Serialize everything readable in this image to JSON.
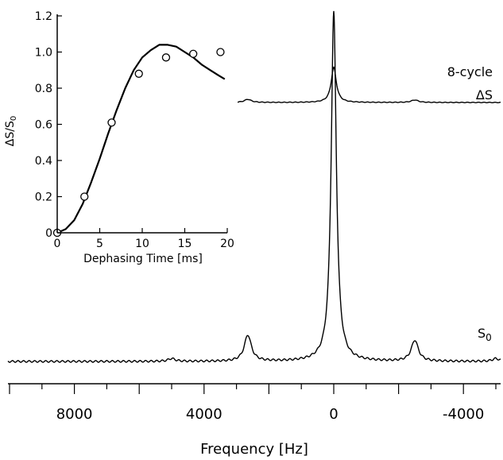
{
  "chart_data": [
    {
      "type": "line",
      "xlabel": "Frequency [Hz]",
      "xticks": [
        8000,
        4000,
        0,
        -4000
      ],
      "xtick_labels": [
        "8000",
        "4000",
        "0",
        "-4000"
      ],
      "xlim": [
        10000,
        -5200
      ],
      "x_reversed": true,
      "traces": [
        {
          "label_line1": "8-cycle",
          "label_line2": "ΔS",
          "relative_height": 0.17,
          "peaks": [
            {
              "x": 0,
              "amp": 0.17
            },
            {
              "x": 2650,
              "amp": 0.015
            },
            {
              "x": -2500,
              "amp": 0.012
            }
          ]
        },
        {
          "label": "S",
          "label_sub": "0",
          "relative_height": 1.0,
          "peaks": [
            {
              "x": 0,
              "amp": 1.0
            },
            {
              "x": 2650,
              "amp": 0.075
            },
            {
              "x": -2500,
              "amp": 0.06
            },
            {
              "x": 5000,
              "amp": 0.008
            },
            {
              "x": -5000,
              "amp": 0.008
            }
          ]
        }
      ]
    },
    {
      "type": "scatter",
      "xlabel": "Dephasing Time [ms]",
      "ylabel_main": "ΔS/S",
      "ylabel_sub": "0",
      "xlim": [
        0,
        20
      ],
      "ylim": [
        0,
        1.2
      ],
      "xticks": [
        0,
        5,
        10,
        15,
        20
      ],
      "xtick_labels": [
        "0",
        "5",
        "10",
        "15",
        "20"
      ],
      "yticks": [
        0,
        0.2,
        0.4,
        0.6,
        0.8,
        1.0,
        1.2
      ],
      "ytick_labels": [
        "0",
        "0.2",
        "0.4",
        "0.6",
        "0.8",
        "1.0",
        "1.2"
      ],
      "points": [
        {
          "x": 0,
          "y": 0.0
        },
        {
          "x": 3.2,
          "y": 0.2
        },
        {
          "x": 6.4,
          "y": 0.61
        },
        {
          "x": 9.6,
          "y": 0.88
        },
        {
          "x": 12.8,
          "y": 0.97
        },
        {
          "x": 16.0,
          "y": 0.99
        },
        {
          "x": 19.2,
          "y": 1.0
        }
      ],
      "fit_curve": [
        {
          "x": 0,
          "y": 0.0
        },
        {
          "x": 1,
          "y": 0.02
        },
        {
          "x": 2,
          "y": 0.07
        },
        {
          "x": 3,
          "y": 0.16
        },
        {
          "x": 4,
          "y": 0.28
        },
        {
          "x": 5,
          "y": 0.41
        },
        {
          "x": 6,
          "y": 0.55
        },
        {
          "x": 7,
          "y": 0.68
        },
        {
          "x": 8,
          "y": 0.8
        },
        {
          "x": 9,
          "y": 0.9
        },
        {
          "x": 10,
          "y": 0.97
        },
        {
          "x": 11,
          "y": 1.01
        },
        {
          "x": 12,
          "y": 1.04
        },
        {
          "x": 13,
          "y": 1.04
        },
        {
          "x": 14,
          "y": 1.03
        },
        {
          "x": 15,
          "y": 1.0
        },
        {
          "x": 16,
          "y": 0.97
        },
        {
          "x": 17,
          "y": 0.93
        },
        {
          "x": 18,
          "y": 0.9
        },
        {
          "x": 19,
          "y": 0.87
        },
        {
          "x": 19.7,
          "y": 0.85
        }
      ]
    }
  ]
}
